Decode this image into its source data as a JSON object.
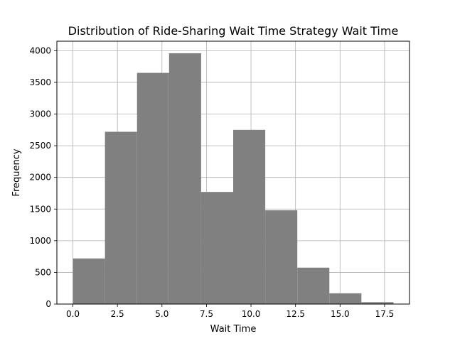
{
  "chart_data": {
    "type": "bar",
    "title": "Distribution of Ride-Sharing Wait Time Strategy Wait Time",
    "xlabel": "Wait Time",
    "ylabel": "Frequency",
    "bin_edges": [
      0.0,
      1.8,
      3.6,
      5.4,
      7.2,
      9.0,
      10.8,
      12.6,
      14.4,
      16.2,
      18.0
    ],
    "values": [
      720,
      2720,
      3650,
      3960,
      1770,
      2750,
      1480,
      575,
      170,
      30
    ],
    "xlim": [
      -0.9,
      18.9
    ],
    "ylim": [
      0,
      4150
    ],
    "xticks": [
      0.0,
      2.5,
      5.0,
      7.5,
      10.0,
      12.5,
      15.0,
      17.5
    ],
    "xtick_labels": [
      "0.0",
      "2.5",
      "5.0",
      "7.5",
      "10.0",
      "12.5",
      "15.0",
      "17.5"
    ],
    "yticks": [
      0,
      500,
      1000,
      1500,
      2000,
      2500,
      3000,
      3500,
      4000
    ],
    "ytick_labels": [
      "0",
      "500",
      "1000",
      "1500",
      "2000",
      "2500",
      "3000",
      "3500",
      "4000"
    ],
    "grid": true,
    "bar_color": "#808080",
    "grid_color": "#b0b0b0"
  }
}
